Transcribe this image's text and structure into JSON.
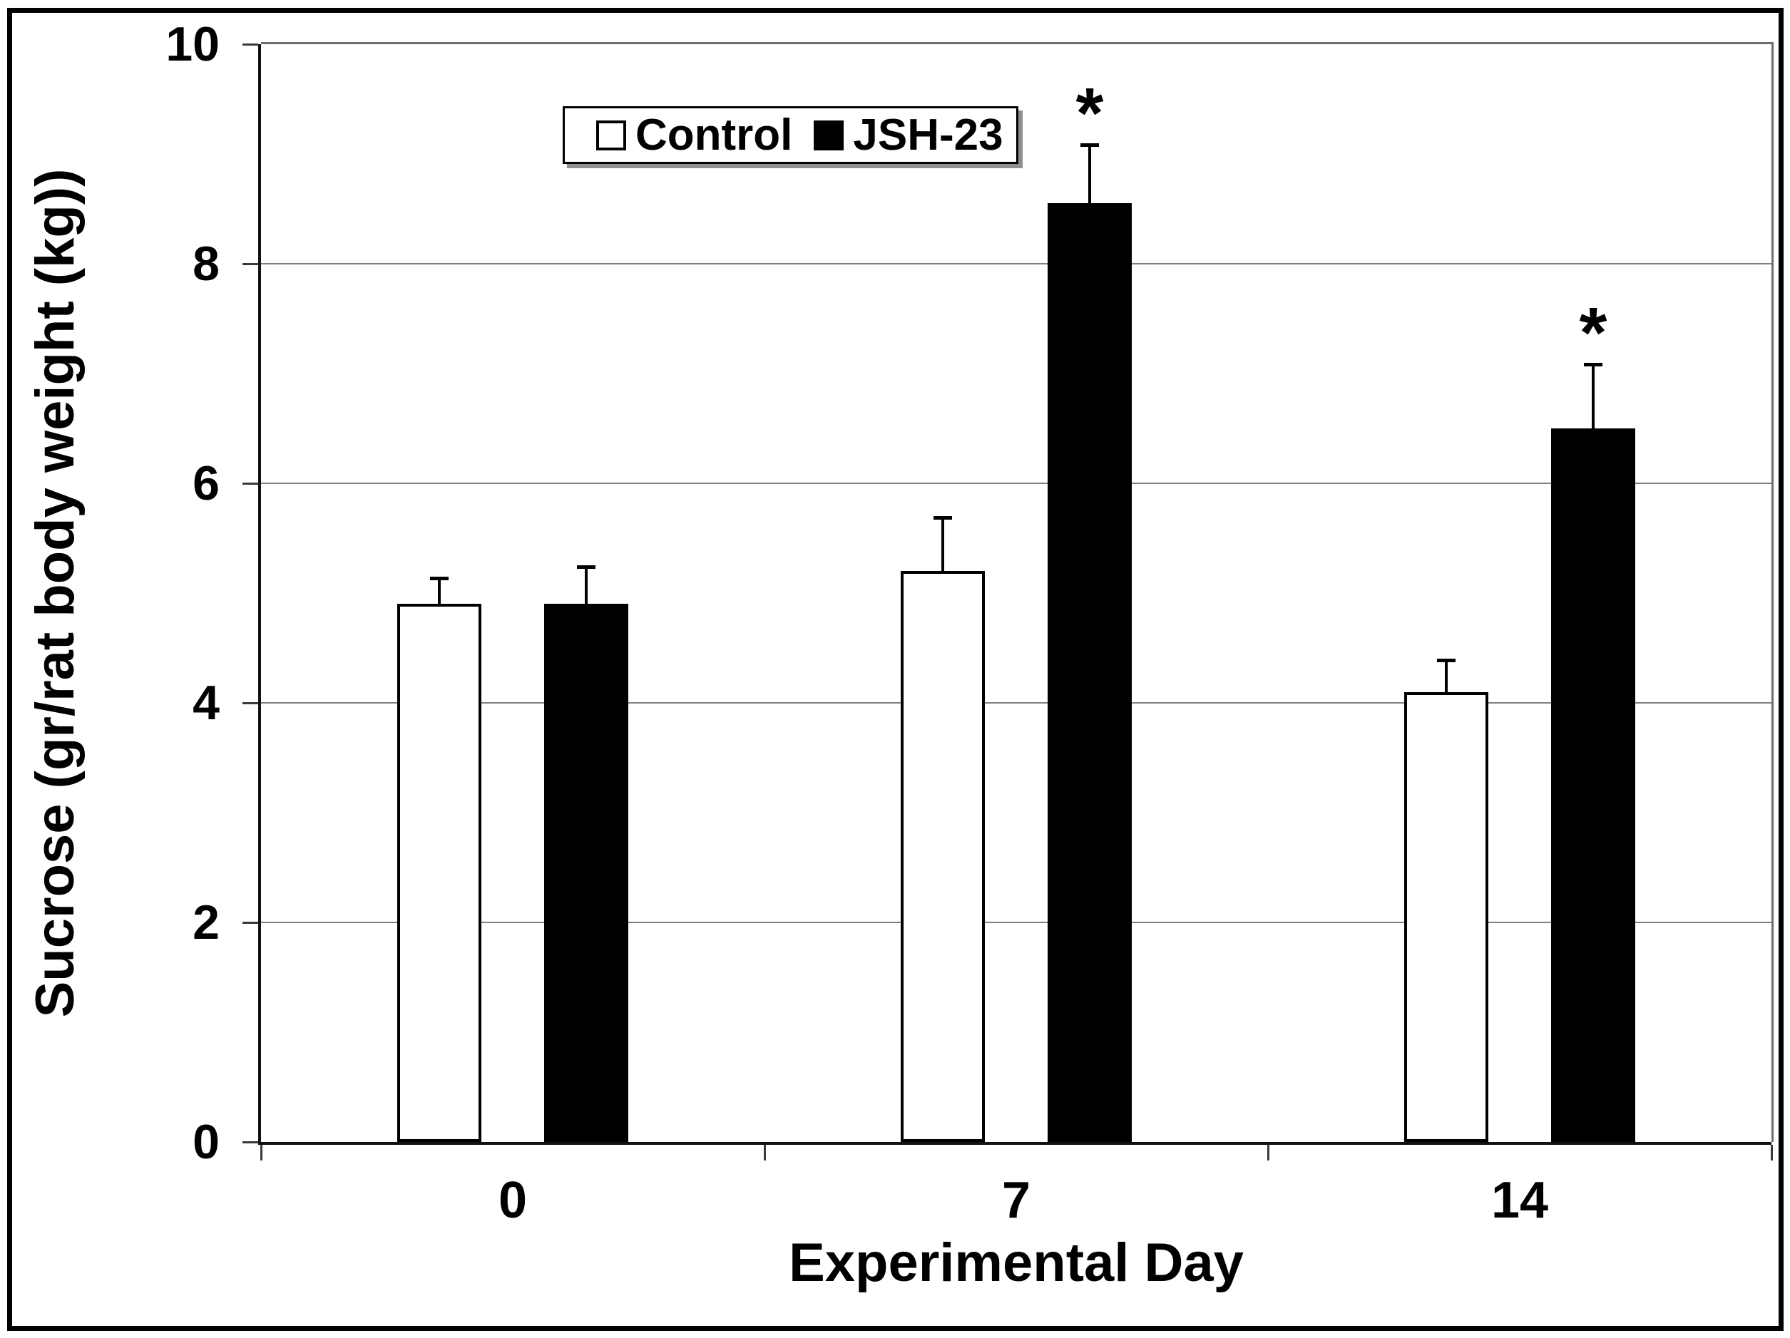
{
  "chart_data": {
    "type": "bar",
    "title": "",
    "xlabel": "Experimental Day",
    "ylabel": "Sucrose (gr/rat body weight (kg))",
    "categories": [
      "0",
      "7",
      "14"
    ],
    "series": [
      {
        "name": "Control",
        "fill": "#ffffff",
        "border": "#000000",
        "values": [
          4.9,
          5.2,
          4.1
        ],
        "errors_plus": [
          0.25,
          0.5,
          0.3
        ],
        "significance": [
          "",
          "",
          ""
        ]
      },
      {
        "name": "JSH-23",
        "fill": "#000000",
        "border": "#000000",
        "values": [
          4.9,
          8.55,
          6.5
        ],
        "errors_plus": [
          0.35,
          0.55,
          0.6
        ],
        "significance": [
          "",
          "*",
          "*"
        ]
      }
    ],
    "ylim": [
      0,
      10
    ],
    "yticks": [
      "0",
      "2",
      "4",
      "6",
      "8",
      "10"
    ],
    "ytick_values": [
      0,
      2,
      4,
      6,
      8,
      10
    ],
    "grid": true,
    "gridline_values": [
      2,
      4,
      6,
      8
    ],
    "gridline_color": "#808080",
    "axis_color": "#121212",
    "plot_border_color": "#6e6e6e",
    "legend_position": "top-left",
    "sig_symbol": "*"
  }
}
